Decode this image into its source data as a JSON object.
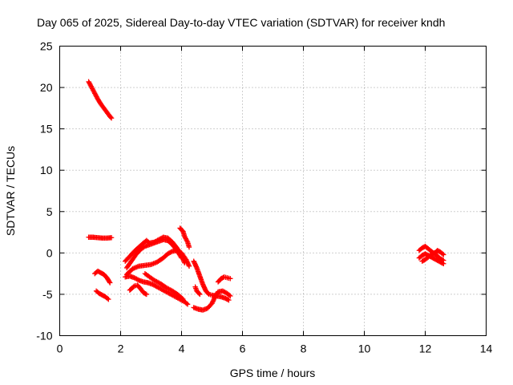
{
  "chart_data": {
    "type": "scatter",
    "title": "Day 065 of 2025, Sidereal Day-to-day VTEC variation (SDTVAR) for receiver kndh",
    "xlabel": "GPS time / hours",
    "ylabel": "SDTVAR / TECUs",
    "xlim": [
      0,
      14
    ],
    "ylim": [
      -10,
      25
    ],
    "xticks": [
      "0",
      "2",
      "4",
      "6",
      "8",
      "10",
      "12",
      "14"
    ],
    "yticks": [
      "-10",
      "-5",
      "0",
      "5",
      "10",
      "15",
      "20",
      "25"
    ],
    "grid": true,
    "marker": "+",
    "color": "#ff0000",
    "series": [
      {
        "points": [
          [
            0.95,
            20.7
          ],
          [
            1.05,
            20.0
          ],
          [
            1.15,
            19.3
          ],
          [
            1.25,
            18.6
          ],
          [
            1.35,
            18.0
          ],
          [
            1.45,
            17.5
          ],
          [
            1.55,
            17.0
          ],
          [
            1.65,
            16.5
          ],
          [
            1.7,
            16.3
          ]
        ]
      },
      {
        "points": [
          [
            0.95,
            1.9
          ],
          [
            1.1,
            1.9
          ],
          [
            1.25,
            1.85
          ],
          [
            1.4,
            1.8
          ],
          [
            1.55,
            1.8
          ],
          [
            1.7,
            1.85
          ]
        ]
      },
      {
        "points": [
          [
            1.15,
            -2.5
          ],
          [
            1.25,
            -2.2
          ],
          [
            1.35,
            -2.4
          ],
          [
            1.45,
            -2.6
          ],
          [
            1.55,
            -3.0
          ],
          [
            1.65,
            -3.6
          ]
        ]
      },
      {
        "points": [
          [
            1.2,
            -4.6
          ],
          [
            1.3,
            -4.9
          ],
          [
            1.4,
            -5.1
          ],
          [
            1.5,
            -5.3
          ],
          [
            1.6,
            -5.6
          ]
        ]
      },
      {
        "points": [
          [
            2.15,
            -1.0
          ],
          [
            2.3,
            -0.4
          ],
          [
            2.45,
            0.2
          ],
          [
            2.6,
            0.7
          ],
          [
            2.75,
            1.2
          ],
          [
            2.85,
            1.5
          ],
          [
            2.95,
            1.2
          ],
          [
            3.1,
            1.3
          ],
          [
            3.25,
            1.6
          ],
          [
            3.4,
            1.9
          ],
          [
            3.55,
            1.8
          ],
          [
            3.7,
            1.3
          ],
          [
            3.85,
            0.6
          ],
          [
            4.0,
            -0.3
          ],
          [
            4.1,
            -1.2
          ]
        ]
      },
      {
        "points": [
          [
            2.2,
            -1.8
          ],
          [
            2.35,
            -1.0
          ],
          [
            2.5,
            -0.2
          ],
          [
            2.65,
            0.4
          ],
          [
            2.8,
            0.8
          ],
          [
            2.95,
            1.0
          ],
          [
            3.1,
            1.2
          ],
          [
            3.25,
            1.4
          ],
          [
            3.4,
            1.6
          ],
          [
            3.55,
            1.5
          ],
          [
            3.7,
            1.0
          ],
          [
            3.85,
            0.3
          ],
          [
            4.0,
            -0.6
          ]
        ]
      },
      {
        "points": [
          [
            2.2,
            -2.6
          ],
          [
            2.4,
            -1.9
          ],
          [
            2.6,
            -1.6
          ],
          [
            2.8,
            -1.5
          ],
          [
            3.0,
            -1.4
          ],
          [
            3.2,
            -1.1
          ],
          [
            3.4,
            -0.6
          ],
          [
            3.55,
            -0.1
          ],
          [
            3.7,
            0.2
          ],
          [
            3.85,
            0.3
          ],
          [
            4.0,
            0.0
          ],
          [
            4.15,
            -0.8
          ],
          [
            4.25,
            -1.6
          ]
        ]
      },
      {
        "points": [
          [
            2.15,
            -2.9
          ],
          [
            2.3,
            -2.8
          ],
          [
            2.45,
            -3.0
          ],
          [
            2.6,
            -3.3
          ],
          [
            2.75,
            -3.5
          ],
          [
            2.9,
            -3.6
          ],
          [
            3.05,
            -3.8
          ],
          [
            3.2,
            -4.1
          ],
          [
            3.35,
            -4.4
          ],
          [
            3.5,
            -4.7
          ],
          [
            3.65,
            -5.0
          ],
          [
            3.8,
            -5.3
          ],
          [
            3.95,
            -5.6
          ],
          [
            4.1,
            -5.9
          ],
          [
            4.2,
            -6.2
          ]
        ]
      },
      {
        "points": [
          [
            2.3,
            -4.5
          ],
          [
            2.45,
            -4.0
          ],
          [
            2.55,
            -3.9
          ],
          [
            2.65,
            -4.3
          ],
          [
            2.75,
            -4.8
          ],
          [
            2.85,
            -5.0
          ]
        ]
      },
      {
        "points": [
          [
            2.8,
            -2.5
          ],
          [
            2.95,
            -2.9
          ],
          [
            3.1,
            -3.3
          ],
          [
            3.3,
            -3.7
          ],
          [
            3.5,
            -4.2
          ],
          [
            3.7,
            -4.6
          ],
          [
            3.9,
            -5.1
          ],
          [
            4.05,
            -5.6
          ]
        ]
      },
      {
        "points": [
          [
            3.95,
            3.0
          ],
          [
            4.05,
            2.6
          ],
          [
            4.1,
            2.0
          ],
          [
            4.2,
            1.3
          ],
          [
            4.25,
            0.7
          ]
        ]
      },
      {
        "points": [
          [
            4.4,
            -1.0
          ],
          [
            4.5,
            -1.8
          ],
          [
            4.6,
            -2.8
          ],
          [
            4.7,
            -3.8
          ],
          [
            4.8,
            -4.6
          ],
          [
            4.9,
            -5.0
          ],
          [
            5.0,
            -5.1
          ],
          [
            5.15,
            -5.2
          ],
          [
            5.3,
            -5.3
          ],
          [
            5.45,
            -5.5
          ],
          [
            5.55,
            -5.7
          ]
        ]
      },
      {
        "points": [
          [
            4.4,
            -6.6
          ],
          [
            4.55,
            -6.8
          ],
          [
            4.7,
            -6.9
          ],
          [
            4.85,
            -6.7
          ],
          [
            5.0,
            -6.1
          ],
          [
            5.1,
            -5.3
          ],
          [
            5.2,
            -4.7
          ],
          [
            5.35,
            -4.6
          ],
          [
            5.5,
            -4.9
          ],
          [
            5.6,
            -5.2
          ]
        ]
      },
      {
        "points": [
          [
            4.45,
            -4.1
          ],
          [
            4.5,
            -4.6
          ],
          [
            4.6,
            -5.0
          ]
        ]
      },
      {
        "points": [
          [
            5.2,
            -3.5
          ],
          [
            5.3,
            -3.1
          ],
          [
            5.4,
            -2.9
          ],
          [
            5.5,
            -3.0
          ],
          [
            5.6,
            -3.1
          ]
        ]
      },
      {
        "points": [
          [
            11.8,
            0.3
          ],
          [
            11.9,
            0.6
          ],
          [
            12.0,
            0.8
          ],
          [
            12.1,
            0.5
          ],
          [
            12.2,
            0.2
          ],
          [
            12.3,
            -0.1
          ],
          [
            12.4,
            0.3
          ],
          [
            12.5,
            0.1
          ],
          [
            12.6,
            -0.2
          ]
        ]
      },
      {
        "points": [
          [
            11.8,
            -0.6
          ],
          [
            11.9,
            -0.3
          ],
          [
            12.0,
            -0.1
          ],
          [
            12.1,
            -0.3
          ],
          [
            12.2,
            -0.5
          ],
          [
            12.3,
            -0.7
          ],
          [
            12.4,
            -0.9
          ],
          [
            12.5,
            -1.1
          ],
          [
            12.6,
            -1.3
          ]
        ]
      },
      {
        "points": [
          [
            11.9,
            -1.0
          ],
          [
            12.0,
            -0.8
          ],
          [
            12.1,
            -0.5
          ],
          [
            12.2,
            -0.2
          ],
          [
            12.3,
            0.0
          ],
          [
            12.4,
            -0.4
          ],
          [
            12.5,
            -0.7
          ],
          [
            12.6,
            -0.9
          ]
        ]
      }
    ]
  }
}
